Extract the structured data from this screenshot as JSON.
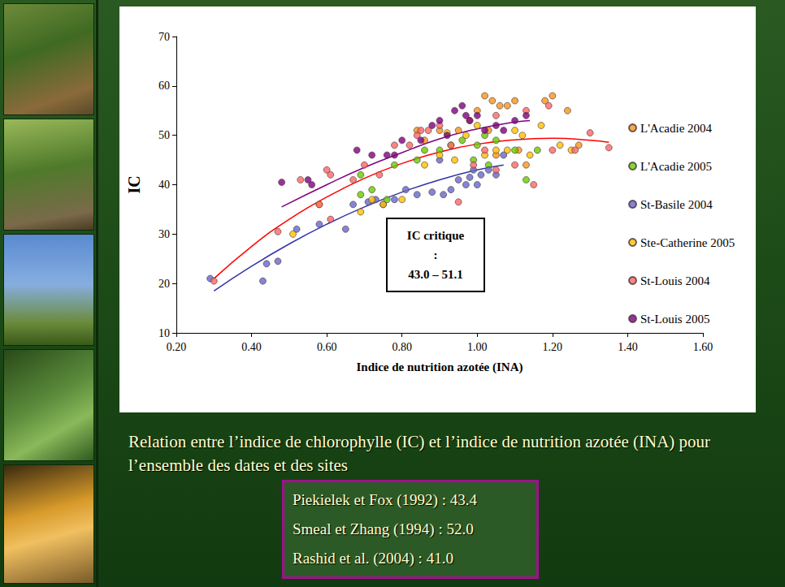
{
  "chart_data": {
    "type": "scatter",
    "x_label": "Indice de nutrition azotée (INA)",
    "y_label": "IC",
    "xlim": [
      0.2,
      1.6
    ],
    "xticks": [
      {
        "value": 0.2,
        "label": "0.20"
      },
      {
        "value": 0.4,
        "label": "0.40"
      },
      {
        "value": 0.6,
        "label": "0.60"
      },
      {
        "value": 0.8,
        "label": "0.80"
      },
      {
        "value": 1.0,
        "label": "1.00"
      },
      {
        "value": 1.2,
        "label": "1.20"
      },
      {
        "value": 1.4,
        "label": "1.40"
      },
      {
        "value": 1.6,
        "label": "1.60"
      }
    ],
    "ylim": [
      10,
      70
    ],
    "yticks": [
      10,
      20,
      30,
      40,
      50,
      60,
      70
    ],
    "grid": false,
    "legend": "right",
    "marker": "circle",
    "annotation": [
      "IC critique",
      ":",
      "43.0 – 51.1"
    ],
    "series": [
      {
        "name": "L'Acadie 2004",
        "color": "#f7941d",
        "x": [
          0.84,
          0.86,
          0.9,
          0.95,
          1.0,
          1.02,
          1.04,
          1.06,
          1.08,
          1.1,
          1.05,
          1.11,
          1.13,
          1.18,
          1.2,
          1.24,
          1.27,
          0.98,
          1.03
        ],
        "values": [
          51,
          49,
          51,
          51,
          55,
          58,
          57,
          56,
          56,
          57,
          46,
          47,
          44,
          57,
          58,
          55,
          48,
          53,
          51
        ]
      },
      {
        "name": "L'Acadie 2005",
        "color": "#66cc00",
        "x": [
          0.69,
          0.69,
          0.72,
          0.76,
          0.78,
          0.84,
          0.86,
          0.9,
          0.93,
          0.96,
          1.0,
          1.02,
          1.05,
          1.1,
          1.13,
          1.16,
          0.99,
          1.03
        ],
        "values": [
          42,
          38,
          39,
          37,
          44,
          45,
          47,
          47,
          48,
          49,
          48,
          50,
          49,
          47,
          41,
          47,
          45,
          44
        ]
      },
      {
        "name": "St-Basile 2004",
        "color": "#6666cc",
        "x": [
          0.29,
          0.43,
          0.44,
          0.47,
          0.52,
          0.58,
          0.65,
          0.67,
          0.71,
          0.73,
          0.75,
          0.78,
          0.81,
          0.84,
          0.88,
          0.91,
          0.93,
          0.95,
          0.97,
          0.98,
          1.0,
          1.01,
          1.03,
          1.05,
          1.07,
          0.99,
          0.9
        ],
        "values": [
          21,
          20.5,
          24,
          24.5,
          31,
          32,
          31,
          36,
          36.5,
          37,
          36,
          37,
          39,
          38,
          38.5,
          38,
          39,
          41,
          40,
          41.5,
          40,
          42,
          43,
          42,
          46,
          43,
          45
        ]
      },
      {
        "name": "Ste-Catherine 2005",
        "color": "#ffc000",
        "x": [
          0.51,
          0.58,
          0.69,
          0.72,
          0.75,
          0.8,
          0.86,
          0.9,
          0.94,
          0.97,
          1.0,
          1.02,
          1.05,
          1.08,
          1.1,
          1.12,
          1.14,
          1.17,
          1.22,
          1.25,
          0.92
        ],
        "values": [
          30,
          36,
          34.5,
          37,
          36,
          37,
          44,
          46,
          45,
          50,
          52,
          46,
          47,
          47,
          51,
          50,
          46,
          52,
          48,
          47,
          50.5
        ]
      },
      {
        "name": "St-Louis 2004",
        "color": "#ff6666",
        "x": [
          0.3,
          0.47,
          0.53,
          0.58,
          0.6,
          0.61,
          0.61,
          0.67,
          0.7,
          0.74,
          0.78,
          0.82,
          0.84,
          0.85,
          0.87,
          0.9,
          0.93,
          0.95,
          0.99,
          1.02,
          1.05,
          1.1,
          1.15,
          1.2,
          1.26,
          1.3,
          1.35,
          1.19,
          1.13,
          1.05
        ],
        "values": [
          20.5,
          30.5,
          41,
          36,
          43,
          42,
          33,
          41,
          44,
          42,
          48,
          48,
          50,
          51,
          51,
          52,
          48,
          36.5,
          44,
          47,
          43,
          44,
          40,
          47,
          47,
          50.5,
          47.5,
          56,
          55,
          54
        ]
      },
      {
        "name": "St-Louis 2005",
        "color": "#800080",
        "x": [
          0.48,
          0.55,
          0.56,
          0.68,
          0.72,
          0.76,
          0.78,
          0.8,
          0.85,
          0.88,
          0.9,
          0.94,
          0.96,
          0.98,
          1.0,
          1.02,
          1.05,
          1.07,
          1.1,
          1.13,
          0.92,
          0.97
        ],
        "values": [
          40.5,
          41,
          40,
          47,
          46,
          46,
          46,
          49,
          49,
          52,
          53,
          55,
          56,
          53,
          54,
          51,
          52,
          51,
          53,
          54,
          50,
          54
        ]
      }
    ],
    "trend_lines": [
      {
        "color": "#ff0000",
        "line_style": "solid",
        "x": [
          0.3,
          0.4,
          0.5,
          0.6,
          0.7,
          0.8,
          0.9,
          1.0,
          1.1,
          1.2,
          1.3,
          1.35
        ],
        "values": [
          21,
          27.5,
          33,
          37.5,
          41.3,
          44.3,
          46.6,
          48.2,
          49.1,
          49.4,
          49,
          48.6
        ]
      },
      {
        "color": "#3333aa",
        "line_style": "solid",
        "x": [
          0.3,
          0.4,
          0.5,
          0.6,
          0.7,
          0.8,
          0.9,
          1.0,
          1.07
        ],
        "values": [
          18.5,
          23.5,
          28,
          32,
          35.5,
          38.5,
          41,
          43,
          44
        ]
      },
      {
        "color": "#800080",
        "line_style": "solid",
        "x": [
          0.48,
          0.6,
          0.7,
          0.8,
          0.9,
          1.0,
          1.1,
          1.14
        ],
        "values": [
          35.5,
          40,
          43.5,
          46.5,
          49.3,
          51.3,
          52.7,
          53
        ]
      }
    ]
  },
  "caption": "Relation entre l’indice de chlorophylle (IC) et l’indice de nutrition azotée (INA) pour l’ensemble des dates et des sites",
  "references": [
    "Piekielek et Fox (1992) : 43.4",
    "Smeal et Zhang (1994) : 52.0",
    "Rashid et al. (2004) : 41.0"
  ]
}
